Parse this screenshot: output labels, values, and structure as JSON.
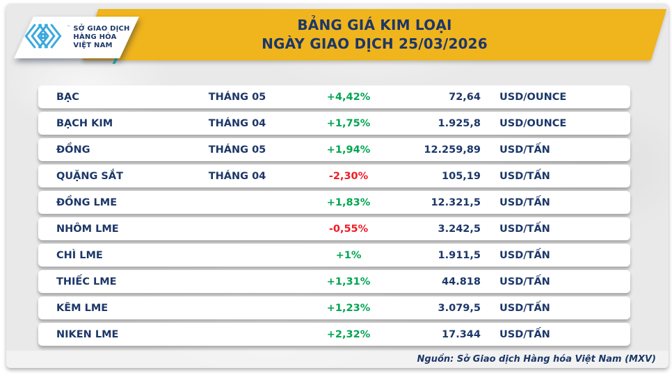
{
  "logo": {
    "line1": "SỞ GIAO DỊCH",
    "line2": "HÀNG HÓA",
    "line3": "VIỆT NAM",
    "trademark": "™",
    "icon": "mxv-chevron-logo"
  },
  "header": {
    "title_line1": "BẢNG GIÁ KIM LOẠI",
    "title_line2": "NGÀY GIAO DỊCH 25/03/2026"
  },
  "table": {
    "rows": [
      {
        "name": "BẠC",
        "month": "THÁNG 05",
        "change": "+4,42%",
        "direction": "up",
        "price": "72,64",
        "unit": "USD/OUNCE"
      },
      {
        "name": "BẠCH KIM",
        "month": "THÁNG 04",
        "change": "+1,75%",
        "direction": "up",
        "price": "1.925,8",
        "unit": "USD/OUNCE"
      },
      {
        "name": "ĐỒNG",
        "month": "THÁNG 05",
        "change": "+1,94%",
        "direction": "up",
        "price": "12.259,89",
        "unit": "USD/TẤN"
      },
      {
        "name": "QUẶNG SẮT",
        "month": "THÁNG 04",
        "change": "-2,30%",
        "direction": "down",
        "price": "105,19",
        "unit": "USD/TẤN"
      },
      {
        "name": "ĐỒNG LME",
        "month": "",
        "change": "+1,83%",
        "direction": "up",
        "price": "12.321,5",
        "unit": "USD/TẤN"
      },
      {
        "name": "NHÔM LME",
        "month": "",
        "change": "-0,55%",
        "direction": "down",
        "price": "3.242,5",
        "unit": "USD/TẤN"
      },
      {
        "name": "CHÌ LME",
        "month": "",
        "change": "+1%",
        "direction": "up",
        "price": "1.911,5",
        "unit": "USD/TẤN"
      },
      {
        "name": "THIẾC LME",
        "month": "",
        "change": "+1,31%",
        "direction": "up",
        "price": "44.818",
        "unit": "USD/TẤN"
      },
      {
        "name": "KẼM LME",
        "month": "",
        "change": "+1,23%",
        "direction": "up",
        "price": "3.079,5",
        "unit": "USD/TẤN"
      },
      {
        "name": "NIKEN LME",
        "month": "",
        "change": "+2,32%",
        "direction": "up",
        "price": "17.344",
        "unit": "USD/TẤN"
      }
    ]
  },
  "footer": {
    "source": "Nguồn: Sở Giao dịch Hàng hóa Việt Nam (MXV)"
  },
  "colors": {
    "banner": "#f0b41d",
    "navy": "#1c3768",
    "up": "#00a551",
    "down": "#ed1c24",
    "logo_blue": "#38a8dd",
    "teal": "#2fb4b4"
  },
  "chart_data": {
    "type": "table",
    "title": "BẢNG GIÁ KIM LOẠI — NGÀY GIAO DỊCH 25/03/2026",
    "columns": [
      "commodity",
      "contract_month",
      "percent_change",
      "price",
      "unit"
    ],
    "rows": [
      [
        "BẠC",
        "THÁNG 05",
        "+4,42%",
        "72,64",
        "USD/OUNCE"
      ],
      [
        "BẠCH KIM",
        "THÁNG 04",
        "+1,75%",
        "1.925,8",
        "USD/OUNCE"
      ],
      [
        "ĐỒNG",
        "THÁNG 05",
        "+1,94%",
        "12.259,89",
        "USD/TẤN"
      ],
      [
        "QUẶNG SẮT",
        "THÁNG 04",
        "-2,30%",
        "105,19",
        "USD/TẤN"
      ],
      [
        "ĐỒNG LME",
        "",
        "+1,83%",
        "12.321,5",
        "USD/TẤN"
      ],
      [
        "NHÔM LME",
        "",
        "-0,55%",
        "3.242,5",
        "USD/TẤN"
      ],
      [
        "CHÌ LME",
        "",
        "+1%",
        "1.911,5",
        "USD/TẤN"
      ],
      [
        "THIẾC LME",
        "",
        "+1,31%",
        "44.818",
        "USD/TẤN"
      ],
      [
        "KẼM LME",
        "",
        "+1,23%",
        "3.079,5",
        "USD/TẤN"
      ],
      [
        "NIKEN LME",
        "",
        "+2,32%",
        "17.344",
        "USD/TẤN"
      ]
    ],
    "source": "Nguồn: Sở Giao dịch Hàng hóa Việt Nam (MXV)"
  }
}
